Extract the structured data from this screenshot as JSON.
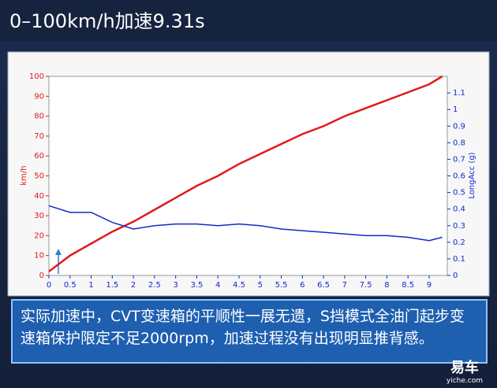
{
  "chart_data": {
    "type": "line",
    "title": "0–100km/h加速9.31s",
    "x": [
      0,
      0.5,
      1,
      1.5,
      2,
      2.5,
      3,
      3.5,
      4,
      4.5,
      5,
      5.5,
      6,
      6.5,
      7,
      7.5,
      8,
      8.5,
      9,
      9.31
    ],
    "series": [
      {
        "name": "km/h",
        "color": "#e01a1a",
        "values": [
          2,
          10,
          16,
          22,
          27,
          33,
          39,
          45,
          50,
          56,
          61,
          66,
          71,
          75,
          80,
          84,
          88,
          92,
          96,
          100
        ]
      },
      {
        "name": "LongAcc (g)",
        "color": "#1428c8",
        "axis": "y2",
        "values": [
          0.42,
          0.38,
          0.38,
          0.32,
          0.28,
          0.3,
          0.31,
          0.31,
          0.3,
          0.31,
          0.3,
          0.28,
          0.27,
          0.26,
          0.25,
          0.24,
          0.24,
          0.23,
          0.21,
          0.23
        ]
      }
    ],
    "xlim": [
      0,
      9.43
    ],
    "xticks": [
      0,
      0.5,
      1,
      1.5,
      2,
      2.5,
      3,
      3.5,
      4,
      4.5,
      5,
      5.5,
      6,
      6.5,
      7,
      7.5,
      8,
      8.5,
      9
    ],
    "ylim": [
      0,
      100
    ],
    "yticks": [
      0,
      10,
      20,
      30,
      40,
      50,
      60,
      70,
      80,
      90,
      100
    ],
    "y2lim": [
      0,
      1.2
    ],
    "y2ticks": [
      0,
      0.1,
      0.2,
      0.3,
      0.4,
      0.5,
      0.6,
      0.7,
      0.8,
      0.9,
      1,
      1.1
    ]
  },
  "caption": "实际加速中，CVT变速箱的平顺性一展无遗，S挡模式全油门起步变速箱保护限定不足2000rpm，加速过程没有出现明显推背感。",
  "logo": {
    "name": "易车",
    "url": "yiche.com"
  }
}
